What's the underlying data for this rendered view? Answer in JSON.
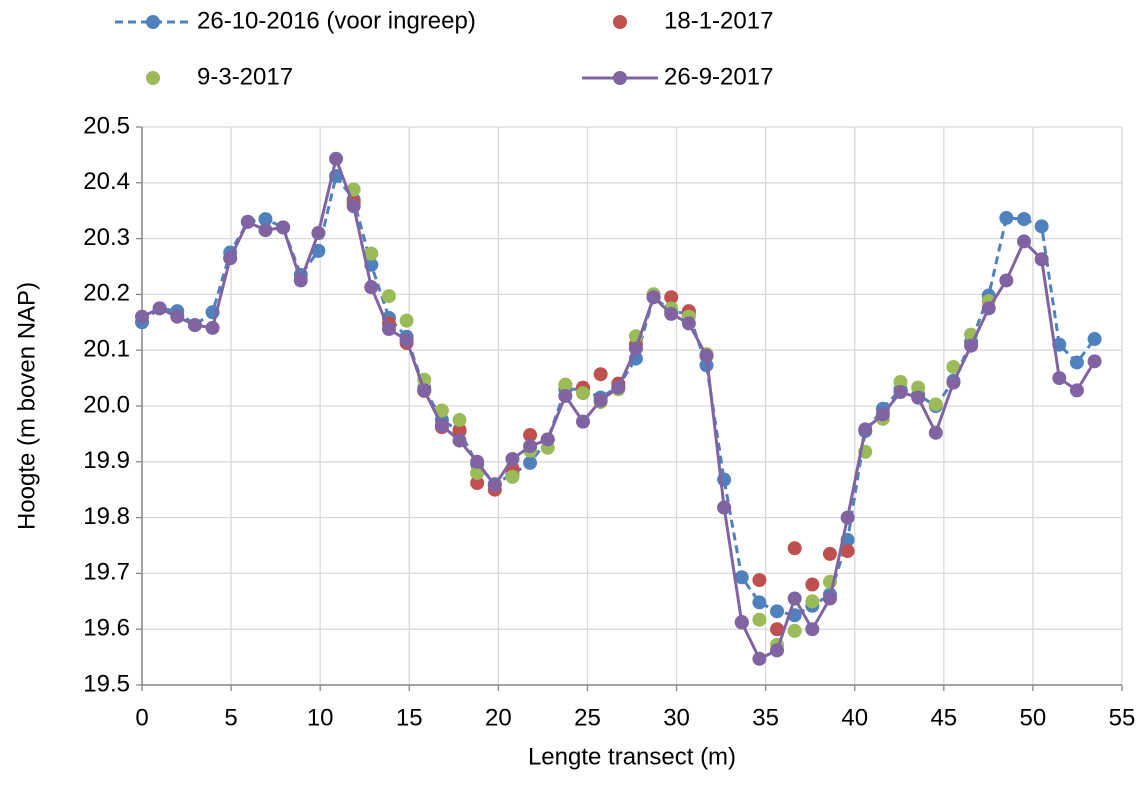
{
  "chart_data": {
    "type": "line",
    "x_label": "Lengte transect (m)",
    "y_label": "Hoogte (m boven NAP)",
    "x": [
      0,
      0.99,
      1.98,
      2.97,
      3.96,
      4.95,
      5.94,
      6.93,
      7.92,
      8.91,
      9.9,
      10.89,
      11.88,
      12.87,
      13.86,
      14.85,
      15.84,
      16.83,
      17.82,
      18.81,
      19.8,
      20.79,
      21.78,
      22.77,
      23.76,
      24.75,
      25.74,
      26.73,
      27.72,
      28.71,
      29.7,
      30.69,
      31.68,
      32.67,
      33.66,
      34.65,
      35.64,
      36.63,
      37.62,
      38.61,
      39.6,
      40.59,
      41.58,
      42.57,
      43.56,
      44.55,
      45.54,
      46.53,
      47.52,
      48.51,
      49.5,
      50.49,
      51.48,
      52.47,
      53.46
    ],
    "series": [
      {
        "name": "26-10-2016 (voor ingreep)",
        "color": "#4f81bd",
        "line": "dashed",
        "values": [
          20.15,
          20.175,
          20.17,
          20.145,
          20.168,
          20.275,
          20.33,
          20.335,
          20.32,
          20.235,
          20.278,
          20.412,
          20.37,
          20.253,
          20.158,
          20.124,
          20.032,
          19.975,
          19.955,
          19.896,
          19.86,
          19.878,
          19.898,
          19.94,
          20.03,
          20.03,
          20.015,
          20.035,
          20.085,
          20.195,
          20.17,
          20.165,
          20.073,
          19.868,
          19.693,
          19.648,
          19.632,
          19.625,
          19.642,
          19.662,
          19.76,
          19.955,
          19.995,
          20.03,
          20.02,
          20.0,
          20.045,
          20.115,
          20.198,
          20.337,
          20.335,
          20.322,
          20.11,
          20.078,
          20.12
        ]
      },
      {
        "name": "18-1-2017",
        "color": "#c0504d",
        "line": "none",
        "values": [
          null,
          null,
          null,
          null,
          null,
          20.265,
          null,
          null,
          null,
          null,
          null,
          null,
          20.365,
          20.213,
          20.148,
          20.113,
          20.027,
          19.962,
          19.957,
          19.862,
          19.85,
          19.888,
          19.948,
          19.94,
          20.038,
          20.033,
          20.057,
          20.04,
          20.11,
          20.2,
          20.195,
          20.17,
          20.09,
          null,
          19.613,
          19.688,
          19.6,
          19.745,
          19.68,
          19.735,
          19.74,
          null,
          null,
          null,
          null,
          null,
          null,
          null,
          null,
          null,
          null,
          null,
          null,
          null,
          null
        ]
      },
      {
        "name": "9-3-2017",
        "color": "#9bbb59",
        "line": "none",
        "values": [
          null,
          null,
          null,
          null,
          null,
          null,
          null,
          null,
          null,
          null,
          null,
          null,
          20.388,
          20.273,
          20.197,
          20.153,
          20.047,
          19.992,
          19.975,
          19.88,
          null,
          19.873,
          19.92,
          19.925,
          20.038,
          20.023,
          20.007,
          20.03,
          20.125,
          20.2,
          20.175,
          20.16,
          20.093,
          19.818,
          19.612,
          19.617,
          19.572,
          19.597,
          19.65,
          19.685,
          null,
          19.918,
          19.977,
          20.043,
          20.033,
          20.003,
          20.07,
          20.128,
          20.188,
          null,
          null,
          null,
          null,
          null,
          null
        ]
      },
      {
        "name": "26-9-2017",
        "color": "#8064a2",
        "line": "solid",
        "values": [
          20.16,
          20.175,
          20.16,
          20.145,
          20.14,
          20.265,
          20.33,
          20.315,
          20.32,
          20.225,
          20.31,
          20.443,
          20.358,
          20.213,
          20.138,
          20.118,
          20.028,
          19.965,
          19.938,
          19.9,
          19.858,
          19.905,
          19.928,
          19.94,
          20.018,
          19.972,
          20.01,
          20.033,
          20.103,
          20.195,
          20.165,
          20.148,
          20.09,
          19.818,
          19.612,
          19.547,
          19.562,
          19.655,
          19.6,
          19.655,
          19.8,
          19.958,
          19.985,
          20.025,
          20.015,
          19.952,
          20.042,
          20.108,
          20.175,
          20.225,
          20.295,
          20.263,
          20.05,
          20.028,
          20.08
        ]
      }
    ],
    "xlim": [
      0,
      55
    ],
    "xticks": [
      0,
      5,
      10,
      15,
      20,
      25,
      30,
      35,
      40,
      45,
      50,
      55
    ],
    "ylim": [
      19.5,
      20.5
    ],
    "yticks": [
      19.5,
      19.6,
      19.7,
      19.8,
      19.9,
      {
        "value": 20,
        "label": "20.0"
      },
      20.1,
      20.2,
      20.3,
      20.4,
      20.5
    ],
    "grid": true,
    "legend": "top"
  }
}
